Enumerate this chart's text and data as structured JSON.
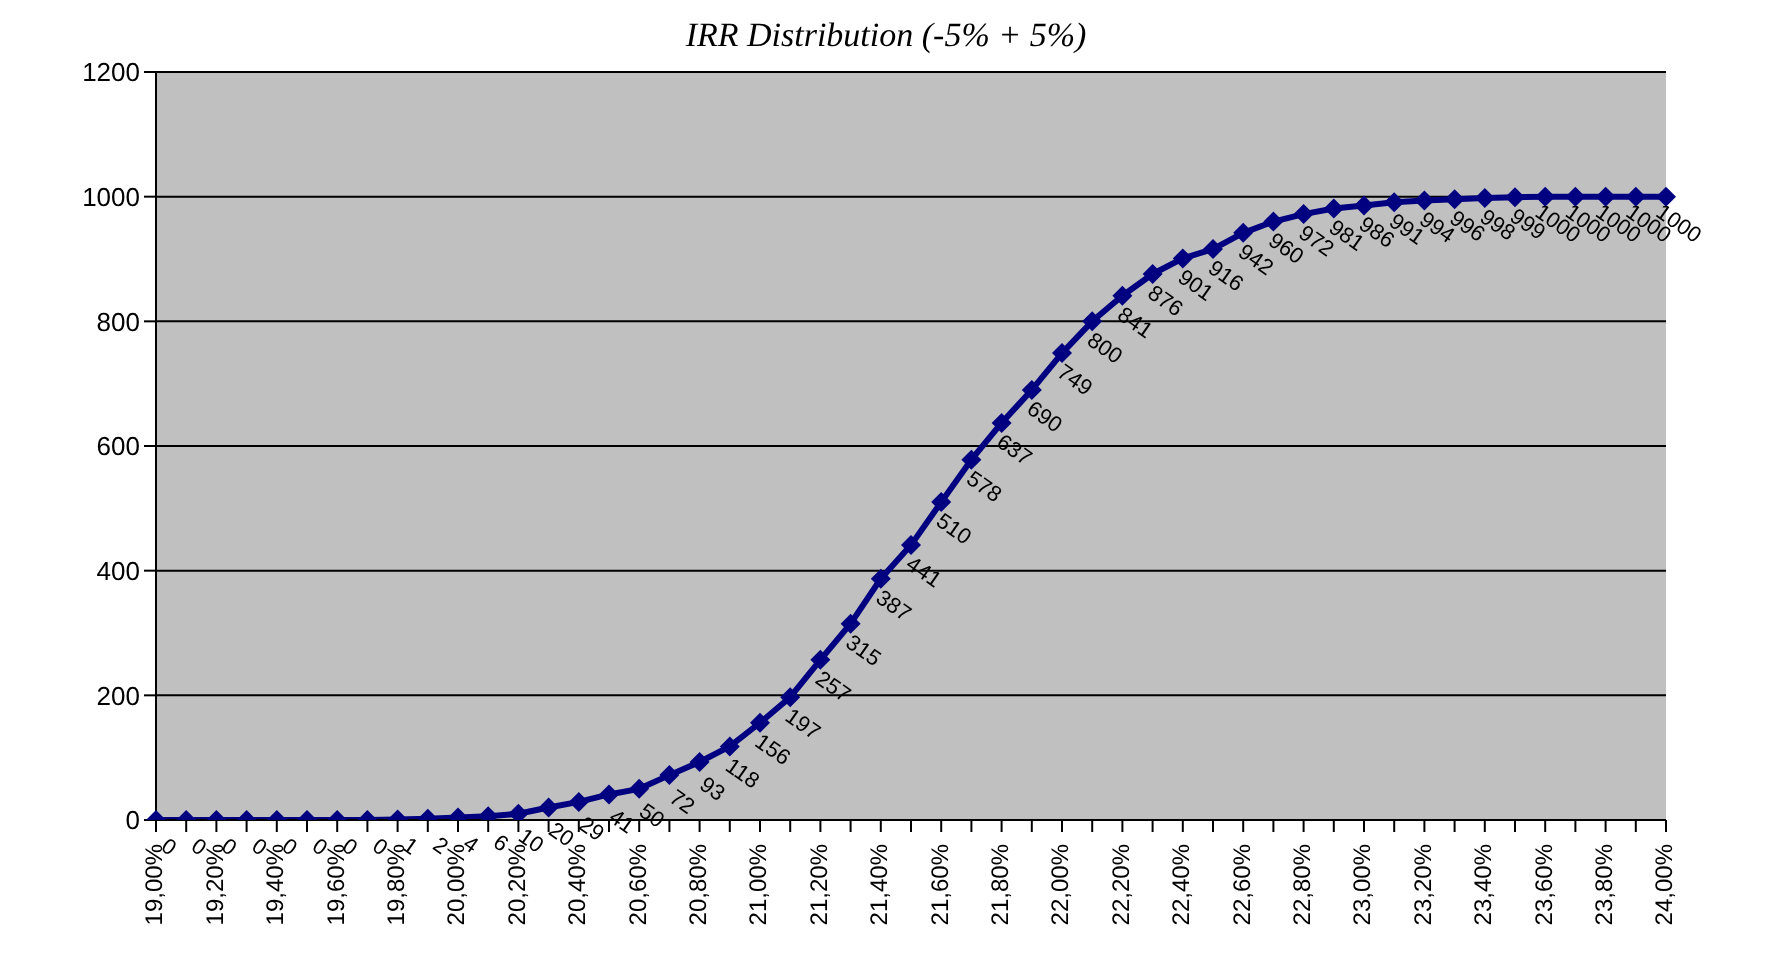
{
  "chart_data": {
    "type": "line",
    "title": "IRR Distribution (-5% + 5%)",
    "categories": [
      "19,00%",
      null,
      "19,20%",
      null,
      "19,40%",
      null,
      "19,60%",
      null,
      "19,80%",
      null,
      "20,00%",
      null,
      "20,20%",
      null,
      "20,40%",
      null,
      "20,60%",
      null,
      "20,80%",
      null,
      "21,00%",
      null,
      "21,20%",
      null,
      "21,40%",
      null,
      "21,60%",
      null,
      "21,80%",
      null,
      "22,00%",
      null,
      "22,20%",
      null,
      "22,40%",
      null,
      "22,60%",
      null,
      "22,80%",
      null,
      "23,00%",
      null,
      "23,20%",
      null,
      "23,40%",
      null,
      "23,60%",
      null,
      "23,80%",
      null,
      "24,00%"
    ],
    "series": [
      {
        "color": "#000080",
        "values": [
          0,
          0,
          0,
          0,
          0,
          0,
          0,
          0,
          1,
          2,
          4,
          6,
          10,
          20,
          29,
          41,
          50,
          72,
          93,
          118,
          156,
          197,
          257,
          315,
          387,
          441,
          510,
          578,
          637,
          690,
          749,
          800,
          841,
          876,
          901,
          916,
          942,
          960,
          972,
          981,
          986,
          991,
          994,
          996,
          998,
          999,
          1000,
          1000,
          1000,
          1000,
          1000
        ]
      }
    ],
    "ylim": [
      0,
      1200
    ],
    "yticks": [
      0,
      200,
      400,
      600,
      800,
      1000,
      1200
    ],
    "grid": "y",
    "legend": false,
    "marker": "diamond",
    "line_style": "solid",
    "data_labels": true
  }
}
